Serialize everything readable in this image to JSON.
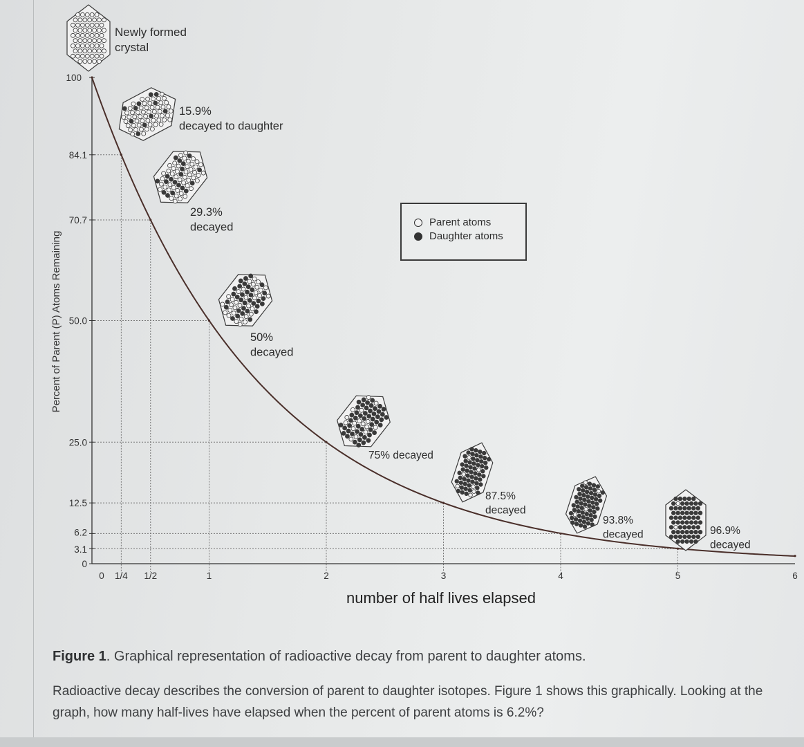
{
  "chart_data": {
    "type": "line",
    "xlabel": "number of half lives elapsed",
    "ylabel": "Percent of Parent (P) Atoms Remaining",
    "x_tick_labels": [
      "0",
      "1/4",
      "1/2",
      "1",
      "2",
      "3",
      "4",
      "5",
      "6"
    ],
    "x_tick_values": [
      0,
      0.25,
      0.5,
      1,
      2,
      3,
      4,
      5,
      6
    ],
    "y_tick_labels": [
      "100",
      "84.1",
      "70.7",
      "50.0",
      "25.0",
      "12.5",
      "6.2",
      "3.1",
      "0"
    ],
    "y_tick_values": [
      100,
      84.1,
      70.7,
      50.0,
      25.0,
      12.5,
      6.2,
      3.1,
      0
    ],
    "xlim": [
      0,
      6
    ],
    "ylim": [
      0,
      100
    ],
    "series": [
      {
        "x": [
          0,
          0.25,
          0.5,
          1,
          2,
          3,
          4,
          5,
          6
        ],
        "y": [
          100,
          84.1,
          70.7,
          50.0,
          25.0,
          12.5,
          6.2,
          3.1,
          1.6
        ]
      }
    ],
    "annotations": [
      {
        "x": 0,
        "y": 100,
        "label": "Newly formed crystal",
        "lines": [
          "Newly formed",
          "crystal"
        ],
        "daughter_fraction": 0
      },
      {
        "x": 0.25,
        "y": 84.1,
        "label": "15.9% decayed to daughter",
        "lines": [
          "15.9%",
          "decayed to daughter"
        ],
        "daughter_fraction": 0.159
      },
      {
        "x": 0.5,
        "y": 70.7,
        "label": "29.3% decayed",
        "lines": [
          "29.3%",
          "decayed"
        ],
        "daughter_fraction": 0.293
      },
      {
        "x": 1,
        "y": 50.0,
        "label": "50% decayed",
        "lines": [
          "50%",
          "decayed"
        ],
        "daughter_fraction": 0.5
      },
      {
        "x": 2,
        "y": 25.0,
        "label": "75% decayed",
        "lines": [
          "75% decayed"
        ],
        "daughter_fraction": 0.75
      },
      {
        "x": 3,
        "y": 12.5,
        "label": "87.5% decayed",
        "lines": [
          "87.5%",
          "decayed"
        ],
        "daughter_fraction": 0.875
      },
      {
        "x": 4,
        "y": 6.2,
        "label": "93.8% decayed",
        "lines": [
          "93.8%",
          "decayed"
        ],
        "daughter_fraction": 0.938
      },
      {
        "x": 5,
        "y": 3.1,
        "label": "96.9% decayed",
        "lines": [
          "96.9%",
          "decayed"
        ],
        "daughter_fraction": 0.969
      }
    ],
    "legend": {
      "placement": "top-right",
      "items": [
        {
          "label": "Parent atoms",
          "marker": "open-circle"
        },
        {
          "label": "Daughter atoms",
          "marker": "filled-circle"
        }
      ]
    },
    "grid": "dotted guide lines at tick values",
    "colors": {
      "curve": "#4a2f2a",
      "axis": "#333333",
      "guide": "#777777",
      "text": "#2d2d2d"
    }
  },
  "caption": {
    "figure_label": "Figure 1",
    "text": ". Graphical representation of radioactive decay from parent to daughter atoms."
  },
  "question": {
    "text": "Radioactive decay describes the conversion of parent to daughter isotopes. Figure 1 shows this graphically. Looking at the graph, how many half-lives have elapsed when the percent of parent atoms is 6.2%?"
  }
}
